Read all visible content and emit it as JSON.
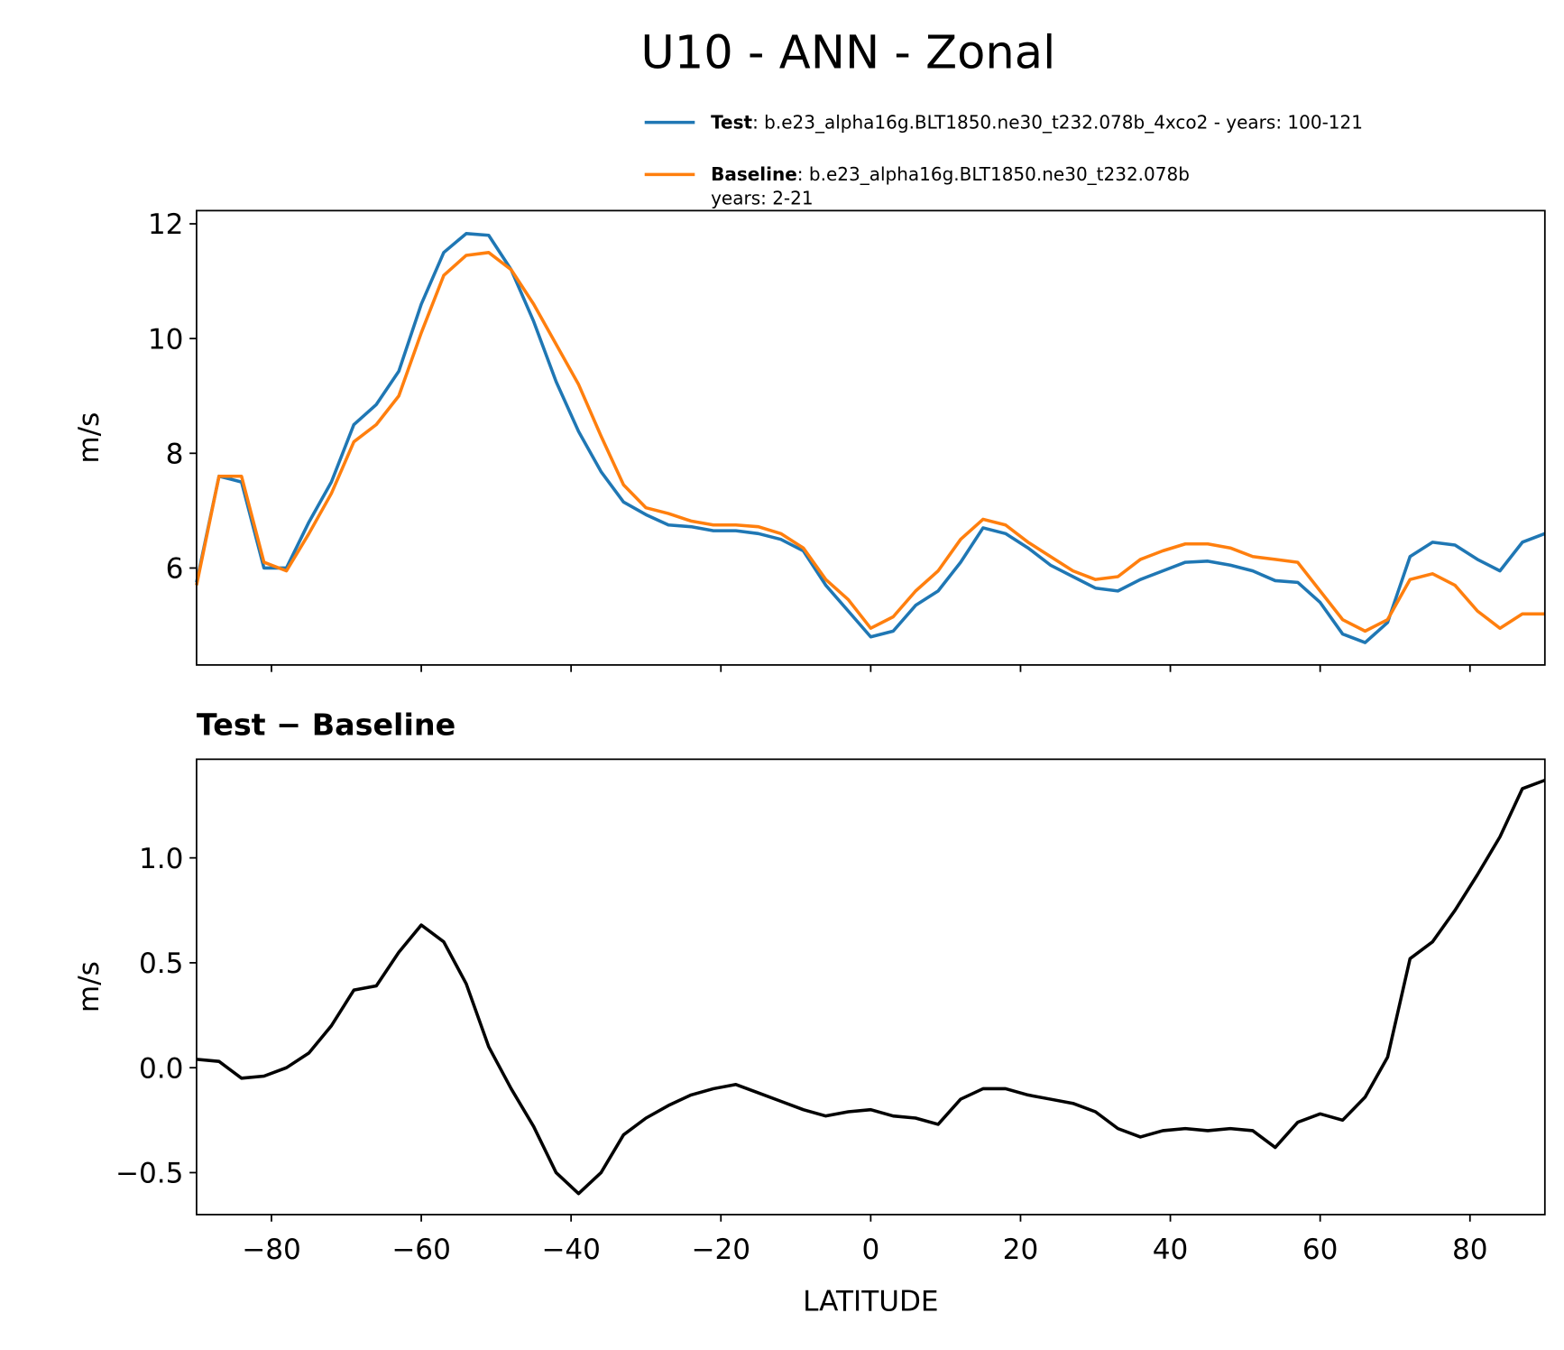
{
  "chart_data": [
    {
      "type": "line",
      "title": "U10 - ANN - Zonal",
      "ylabel": "m/s",
      "x": [
        -90,
        -87,
        -84,
        -81,
        -78,
        -75,
        -72,
        -69,
        -66,
        -63,
        -60,
        -57,
        -54,
        -51,
        -48,
        -45,
        -42,
        -39,
        -36,
        -33,
        -30,
        -27,
        -24,
        -21,
        -18,
        -15,
        -12,
        -9,
        -6,
        -3,
        0,
        3,
        6,
        9,
        12,
        15,
        18,
        21,
        24,
        27,
        30,
        33,
        36,
        39,
        42,
        45,
        48,
        51,
        54,
        57,
        60,
        63,
        66,
        69,
        72,
        75,
        78,
        81,
        84,
        87,
        90
      ],
      "series": [
        {
          "name": "Test",
          "label": [
            ": b.e23_alpha16g.BLT1850.ne30_t232.078b_4xco2 - years: 100-121"
          ],
          "color": "#1f77b4",
          "values": [
            5.75,
            7.6,
            7.5,
            6.0,
            6.0,
            6.8,
            7.5,
            8.5,
            8.85,
            9.43,
            10.6,
            11.5,
            11.83,
            11.8,
            11.2,
            10.3,
            9.25,
            8.38,
            7.68,
            7.15,
            6.93,
            6.75,
            6.72,
            6.65,
            6.65,
            6.6,
            6.5,
            6.3,
            5.7,
            5.25,
            4.8,
            4.9,
            5.35,
            5.6,
            6.1,
            6.7,
            6.6,
            6.35,
            6.05,
            5.85,
            5.65,
            5.6,
            5.8,
            5.95,
            6.1,
            6.12,
            6.05,
            5.95,
            5.78,
            5.75,
            5.4,
            4.85,
            4.7,
            5.05,
            6.2,
            6.45,
            6.4,
            6.15,
            5.95,
            6.45,
            6.6
          ]
        },
        {
          "name": "Baseline",
          "label": [
            ": b.e23_alpha16g.BLT1850.ne30_t232.078b",
            "years: 2-21"
          ],
          "color": "#ff7f0e",
          "values": [
            5.7,
            7.6,
            7.6,
            6.1,
            5.95,
            6.6,
            7.3,
            8.2,
            8.5,
            9.0,
            10.1,
            11.1,
            11.45,
            11.5,
            11.2,
            10.6,
            9.9,
            9.2,
            8.3,
            7.45,
            7.05,
            6.95,
            6.82,
            6.75,
            6.75,
            6.72,
            6.6,
            6.35,
            5.8,
            5.45,
            4.95,
            5.15,
            5.6,
            5.95,
            6.5,
            6.85,
            6.75,
            6.45,
            6.2,
            5.95,
            5.8,
            5.85,
            6.15,
            6.3,
            6.42,
            6.42,
            6.35,
            6.2,
            6.15,
            6.1,
            5.6,
            5.1,
            4.9,
            5.1,
            5.8,
            5.9,
            5.7,
            5.25,
            4.95,
            5.2,
            5.2
          ]
        }
      ],
      "xlim": [
        -90,
        90
      ],
      "xticks": [
        -80,
        -60,
        -40,
        -20,
        0,
        20,
        40,
        60,
        80
      ],
      "ylim": [
        4.31,
        12.23
      ],
      "yticks": [
        6,
        8,
        10,
        12
      ],
      "legend": "upper right"
    },
    {
      "type": "line",
      "title": "Test − Baseline",
      "ylabel": "m/s",
      "xlabel": "LATITUDE",
      "x": [
        -90,
        -87,
        -84,
        -81,
        -78,
        -75,
        -72,
        -69,
        -66,
        -63,
        -60,
        -57,
        -54,
        -51,
        -48,
        -45,
        -42,
        -39,
        -36,
        -33,
        -30,
        -27,
        -24,
        -21,
        -18,
        -15,
        -12,
        -9,
        -6,
        -3,
        0,
        3,
        6,
        9,
        12,
        15,
        18,
        21,
        24,
        27,
        30,
        33,
        36,
        39,
        42,
        45,
        48,
        51,
        54,
        57,
        60,
        63,
        66,
        69,
        72,
        75,
        78,
        81,
        84,
        87,
        90
      ],
      "series": [
        {
          "color": "#000000",
          "values": [
            0.04,
            0.03,
            -0.05,
            -0.04,
            0.0,
            0.07,
            0.2,
            0.37,
            0.39,
            0.55,
            0.68,
            0.6,
            0.4,
            0.1,
            -0.1,
            -0.28,
            -0.5,
            -0.6,
            -0.5,
            -0.32,
            -0.24,
            -0.18,
            -0.13,
            -0.1,
            -0.08,
            -0.12,
            -0.16,
            -0.2,
            -0.23,
            -0.21,
            -0.2,
            -0.23,
            -0.24,
            -0.27,
            -0.15,
            -0.1,
            -0.1,
            -0.13,
            -0.15,
            -0.17,
            -0.21,
            -0.29,
            -0.33,
            -0.3,
            -0.29,
            -0.3,
            -0.29,
            -0.3,
            -0.38,
            -0.26,
            -0.22,
            -0.25,
            -0.14,
            0.05,
            0.52,
            0.6,
            0.75,
            0.92,
            1.1,
            1.33,
            1.37
          ]
        }
      ],
      "xlim": [
        -90,
        90
      ],
      "xticks": [
        {
          "value": -80,
          "label": "−80"
        },
        {
          "value": -60,
          "label": "−60"
        },
        {
          "value": -40,
          "label": "−40"
        },
        {
          "value": -20,
          "label": "−20"
        },
        0,
        20,
        40,
        60,
        80
      ],
      "ylim": [
        -0.7,
        1.47
      ],
      "yticks": [
        {
          "value": -0.5,
          "label": "−0.5"
        },
        {
          "value": 0,
          "label": "0.0"
        },
        0.5,
        {
          "value": 1,
          "label": "1.0"
        }
      ]
    }
  ]
}
